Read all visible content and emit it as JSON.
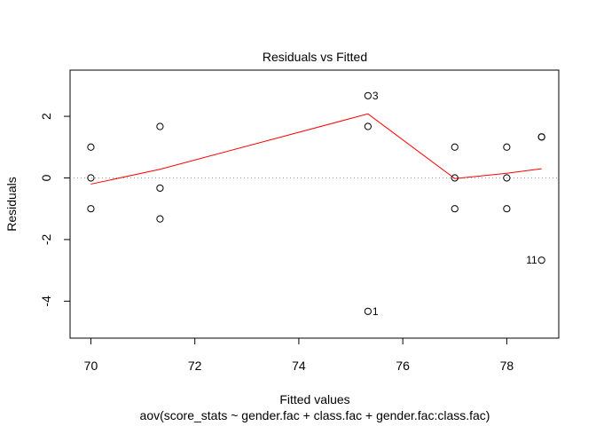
{
  "chart_data": {
    "type": "scatter",
    "title": "Residuals vs Fitted",
    "xlabel": "Fitted values",
    "subtitle": "aov(score_stats ~ gender.fac + class.fac + gender.fac:class.fac)",
    "ylabel": "Residuals",
    "xlim": [
      69.6,
      79.0
    ],
    "ylim": [
      -5.2,
      3.5
    ],
    "x_ticks": [
      70,
      72,
      74,
      76,
      78
    ],
    "y_ticks": [
      -4,
      -2,
      0,
      2
    ],
    "grid": false,
    "reference_line_y": 0,
    "points": [
      {
        "x": 70.0,
        "y": 1.0
      },
      {
        "x": 70.0,
        "y": 0.0
      },
      {
        "x": 70.0,
        "y": -1.0
      },
      {
        "x": 71.33,
        "y": 1.67
      },
      {
        "x": 71.33,
        "y": -0.33
      },
      {
        "x": 71.33,
        "y": -1.33
      },
      {
        "x": 75.33,
        "y": 2.67,
        "label": "3"
      },
      {
        "x": 75.33,
        "y": 1.67
      },
      {
        "x": 75.33,
        "y": -4.33,
        "label": "1"
      },
      {
        "x": 77.0,
        "y": 1.0
      },
      {
        "x": 77.0,
        "y": 0.0
      },
      {
        "x": 77.0,
        "y": -1.0
      },
      {
        "x": 78.0,
        "y": 1.0
      },
      {
        "x": 78.0,
        "y": 0.0
      },
      {
        "x": 78.0,
        "y": -1.0
      },
      {
        "x": 78.67,
        "y": 1.33
      },
      {
        "x": 78.67,
        "y": 1.33
      },
      {
        "x": 78.67,
        "y": -2.67,
        "label": "11"
      }
    ],
    "smooth_line": {
      "color": "#ff0000",
      "x": [
        70.0,
        71.33,
        75.33,
        77.0,
        78.0,
        78.67
      ],
      "y": [
        -0.2,
        0.28,
        2.08,
        -0.02,
        0.15,
        0.3
      ]
    }
  }
}
